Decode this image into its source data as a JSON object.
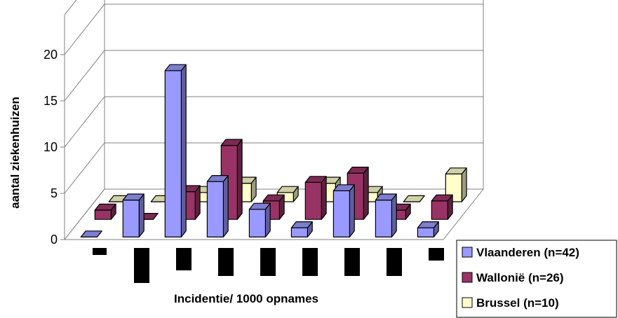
{
  "colors": {
    "Vlaanderen": "#9999FF",
    "Wallonië": "#993366",
    "Brussel": "#FFFFCC",
    "grid": "#808080",
    "category_blocks": "#000000"
  },
  "chart_data": {
    "type": "bar",
    "subtype": "3d-clustered-column",
    "title": "",
    "xlabel": "Incidentie/ 1000 opnames",
    "ylabel": "aantal ziekenhuizen",
    "ylim": [
      0,
      20
    ],
    "yticks": [
      "0",
      "5",
      "10",
      "15",
      "20"
    ],
    "grid": true,
    "legend_position": "bottom-right",
    "categories": [
      "",
      "",
      "",
      "",
      "",
      "",
      "",
      "",
      ""
    ],
    "series": [
      {
        "name": "Vlaanderen (n=42)",
        "key": "Vlaanderen",
        "values": [
          0,
          4,
          18,
          6,
          3,
          1,
          5,
          4,
          1
        ]
      },
      {
        "name": "Wallonië (n=26)",
        "key": "Wallonië",
        "values": [
          1,
          0,
          3,
          8,
          2,
          4,
          5,
          1,
          2
        ]
      },
      {
        "name": "Brussel (n=10)",
        "key": "Brussel",
        "values": [
          0,
          0,
          1,
          2,
          1,
          2,
          1,
          0,
          3
        ]
      }
    ]
  }
}
